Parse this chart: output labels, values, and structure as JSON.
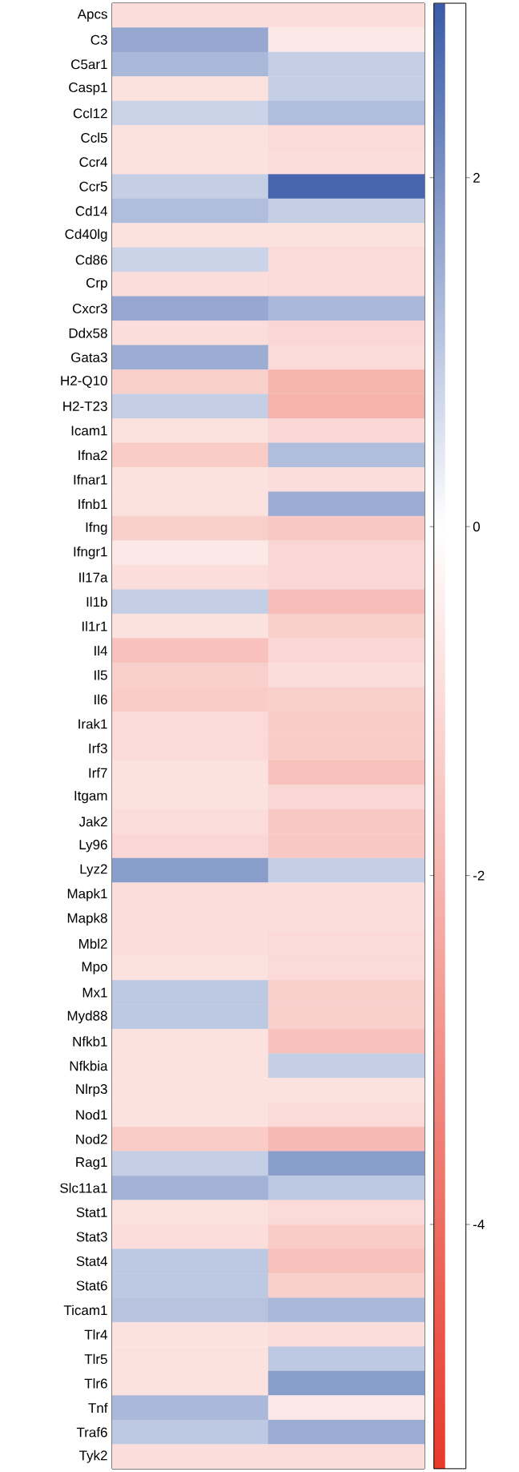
{
  "chart_data": {
    "type": "heatmap",
    "categories": [
      null,
      null
    ],
    "y_categories": [
      "Apcs",
      "C3",
      "C5ar1",
      "Casp1",
      "Ccl12",
      "Ccl5",
      "Ccr4",
      "Ccr5",
      "Cd14",
      "Cd40lg",
      "Cd86",
      "Crp",
      "Cxcr3",
      "Ddx58",
      "Gata3",
      "H2-Q10",
      "H2-T23",
      "Icam1",
      "Ifna2",
      "Ifnar1",
      "Ifnb1",
      "Ifng",
      "Ifngr1",
      "Il17a",
      "Il1b",
      "Il1r1",
      "Il4",
      "Il5",
      "Il6",
      "Irak1",
      "Irf3",
      "Irf7",
      "Itgam",
      "Jak2",
      "Ly96",
      "Lyz2",
      "Mapk1",
      "Mapk8",
      "Mbl2",
      "Mpo",
      "Mx1",
      "Myd88",
      "Nfkb1",
      "Nfkbia",
      "Nlrp3",
      "Nod1",
      "Nod2",
      "Rag1",
      "Slc11a1",
      "Stat1",
      "Stat3",
      "Stat4",
      "Stat6",
      "Ticam1",
      "Tlr4",
      "Tlr5",
      "Tlr6",
      "Tnf",
      "Traf6",
      "Tyk2"
    ],
    "cells": [
      [
        -0.9,
        -0.9
      ],
      [
        1.6,
        -0.6
      ],
      [
        1.3,
        0.9
      ],
      [
        -0.8,
        0.9
      ],
      [
        0.8,
        1.2
      ],
      [
        -0.8,
        -1.0
      ],
      [
        -0.8,
        -0.9
      ],
      [
        0.9,
        2.8
      ],
      [
        1.2,
        0.9
      ],
      [
        -0.8,
        -0.8
      ],
      [
        0.8,
        -1.0
      ],
      [
        -0.9,
        -1.0
      ],
      [
        1.6,
        1.3
      ],
      [
        -0.9,
        -1.1
      ],
      [
        1.5,
        -1.0
      ],
      [
        -1.3,
        -2.0
      ],
      [
        0.9,
        -2.1
      ],
      [
        -0.8,
        -1.1
      ],
      [
        -1.4,
        1.2
      ],
      [
        -0.8,
        -0.9
      ],
      [
        -0.8,
        1.5
      ],
      [
        -1.3,
        -1.5
      ],
      [
        -0.6,
        -1.1
      ],
      [
        -0.9,
        -1.1
      ],
      [
        0.9,
        -1.8
      ],
      [
        -0.8,
        -1.3
      ],
      [
        -1.7,
        -1.1
      ],
      [
        -1.3,
        -0.9
      ],
      [
        -1.4,
        -1.3
      ],
      [
        -1.0,
        -1.4
      ],
      [
        -1.0,
        -1.4
      ],
      [
        -0.8,
        -1.7
      ],
      [
        -0.8,
        -1.1
      ],
      [
        -0.9,
        -1.5
      ],
      [
        -1.1,
        -1.5
      ],
      [
        1.8,
        0.9
      ],
      [
        -0.9,
        -0.9
      ],
      [
        -0.9,
        -0.9
      ],
      [
        -0.9,
        -1.0
      ],
      [
        -0.8,
        -1.0
      ],
      [
        1.0,
        -1.3
      ],
      [
        1.0,
        -1.3
      ],
      [
        -0.8,
        -1.7
      ],
      [
        -0.8,
        0.9
      ],
      [
        -0.8,
        -0.8
      ],
      [
        -0.8,
        -1.0
      ],
      [
        -1.4,
        -1.9
      ],
      [
        0.9,
        1.8
      ],
      [
        1.4,
        1.0
      ],
      [
        -0.8,
        -1.0
      ],
      [
        -0.9,
        -1.4
      ],
      [
        1.0,
        -1.7
      ],
      [
        1.0,
        -1.3
      ],
      [
        1.1,
        1.3
      ],
      [
        -0.8,
        -0.9
      ],
      [
        -0.8,
        1.0
      ],
      [
        -0.8,
        1.8
      ],
      [
        1.3,
        -0.6
      ],
      [
        1.0,
        1.5
      ],
      [
        -0.9,
        -0.9
      ]
    ],
    "clim": [
      -5.4,
      3.0
    ],
    "cticks": [
      2,
      0,
      -2,
      -4
    ]
  }
}
